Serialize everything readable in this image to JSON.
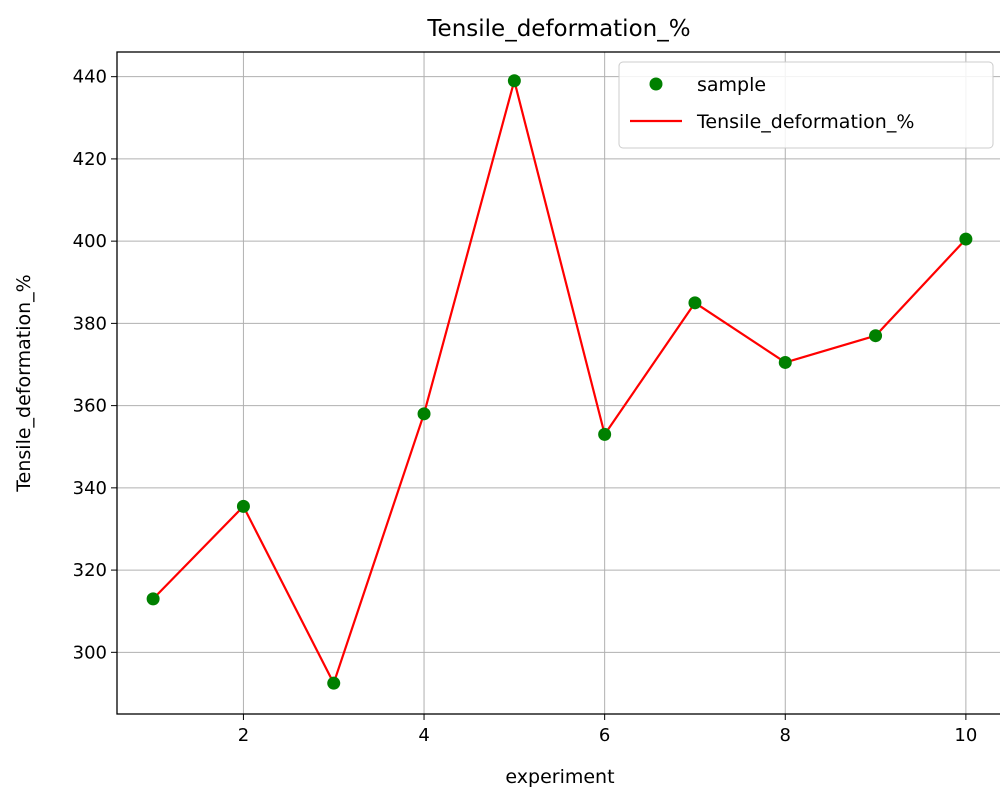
{
  "chart_data": {
    "type": "line",
    "title": "Tensile_deformation_%",
    "xlabel": "experiment",
    "ylabel": "Tensile_deformation_%",
    "xlim": [
      0.6,
      10.4
    ],
    "ylim": [
      285,
      446
    ],
    "xticks": [
      2,
      4,
      6,
      8,
      10
    ],
    "yticks": [
      300,
      320,
      340,
      360,
      380,
      400,
      420,
      440
    ],
    "grid": true,
    "legend_position": "top-right",
    "x": [
      1,
      2,
      3,
      4,
      5,
      6,
      7,
      8,
      9,
      10
    ],
    "series": [
      {
        "name": "sample",
        "kind": "scatter",
        "color": "#008000",
        "values": [
          313,
          335.5,
          292.5,
          358,
          439,
          353,
          385,
          370.5,
          377,
          400.5
        ]
      },
      {
        "name": "Tensile_deformation_%",
        "kind": "line",
        "color": "#ff0000",
        "values": [
          313,
          335.5,
          292.5,
          358,
          439,
          353,
          385,
          370.5,
          377,
          400.5
        ]
      }
    ]
  }
}
